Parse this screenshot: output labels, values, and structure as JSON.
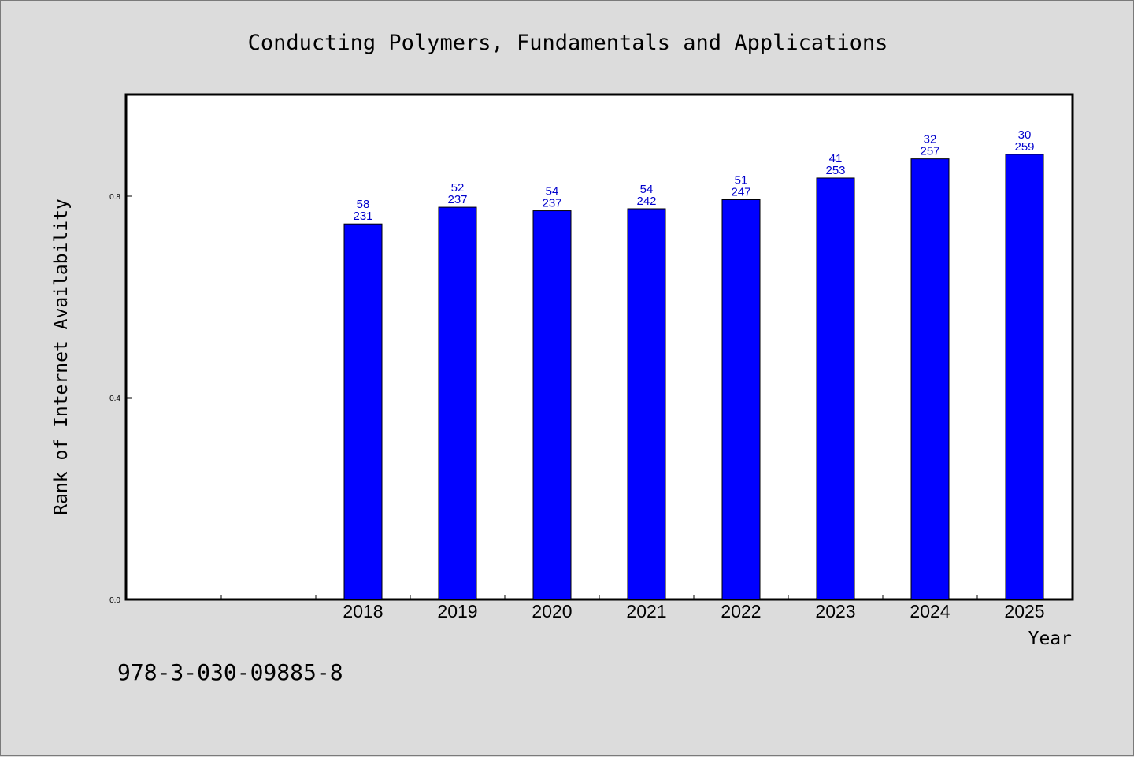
{
  "chart_data": {
    "type": "bar",
    "title": "Conducting Polymers, Fundamentals and Applications",
    "xlabel": "Year",
    "ylabel": "Rank of Internet Availability",
    "ylim": [
      0,
      1.0
    ],
    "yticks": [
      "0.0",
      "0.4",
      "0.8"
    ],
    "categories": [
      "2018",
      "2019",
      "2020",
      "2021",
      "2022",
      "2023",
      "2024",
      "2025"
    ],
    "values": [
      0.745,
      0.778,
      0.771,
      0.775,
      0.793,
      0.836,
      0.874,
      0.883
    ],
    "bar_labels_top": [
      "58",
      "52",
      "54",
      "54",
      "51",
      "41",
      "32",
      "30"
    ],
    "bar_labels_bottom": [
      "231",
      "237",
      "237",
      "242",
      "247",
      "253",
      "257",
      "259"
    ],
    "bar_color": "#0000ff",
    "label_color": "#0000cc",
    "grid": false
  },
  "footer": {
    "isbn": "978-3-030-09885-8"
  }
}
